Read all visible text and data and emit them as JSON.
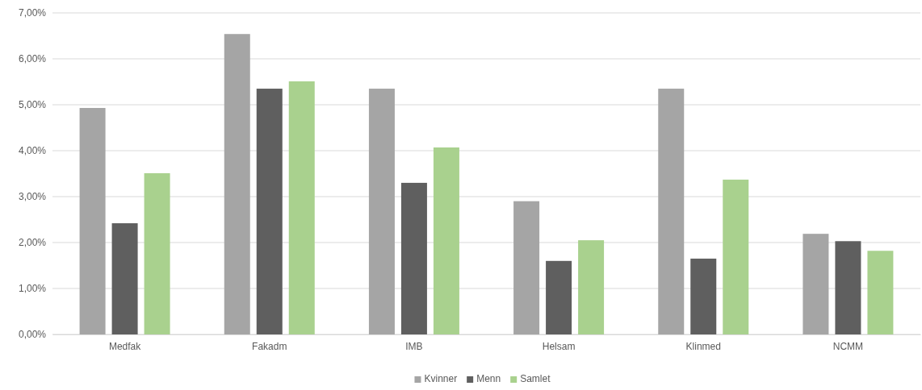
{
  "chart_data": {
    "type": "bar",
    "categories": [
      "Medfak",
      "Fakadm",
      "IMB",
      "Helsam",
      "Klinmed",
      "NCMM"
    ],
    "series": [
      {
        "name": "Kvinner",
        "color": "#a5a5a5",
        "values": [
          4.93,
          6.54,
          5.35,
          2.9,
          5.35,
          2.19
        ]
      },
      {
        "name": "Menn",
        "color": "#5f5f5f",
        "values": [
          2.42,
          5.35,
          3.3,
          1.6,
          1.65,
          2.03
        ]
      },
      {
        "name": "Samlet",
        "color": "#a9d18e",
        "values": [
          3.51,
          5.51,
          4.07,
          2.05,
          3.37,
          1.82
        ]
      }
    ],
    "ylim": [
      0,
      7
    ],
    "yticks": [
      {
        "value": 0,
        "label": "0,00%"
      },
      {
        "value": 1,
        "label": "1,00%"
      },
      {
        "value": 2,
        "label": "2,00%"
      },
      {
        "value": 3,
        "label": "3,00%"
      },
      {
        "value": 4,
        "label": "4,00%"
      },
      {
        "value": 5,
        "label": "5,00%"
      },
      {
        "value": 6,
        "label": "6,00%"
      },
      {
        "value": 7,
        "label": "7,00%"
      }
    ],
    "grid": "y",
    "legend": "bottom"
  }
}
